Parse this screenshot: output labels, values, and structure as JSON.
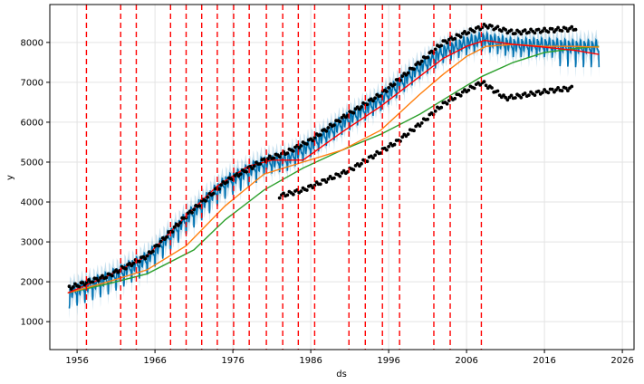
{
  "chart_data": {
    "type": "line",
    "title": "",
    "xlabel": "ds",
    "ylabel": "y",
    "xlim": [
      1952.5,
      2027.5
    ],
    "ylim": [
      300,
      8950
    ],
    "x_ticks": [
      1956,
      1966,
      1976,
      1986,
      1996,
      2006,
      2016,
      2026
    ],
    "y_ticks": [
      1000,
      2000,
      3000,
      4000,
      5000,
      6000,
      7000,
      8000
    ],
    "grid": true,
    "colors": {
      "observed": "#000000",
      "forecast": "#0072B2",
      "uncertainty": "#0072B2",
      "trend": "#ff0000",
      "changepoint": "#ff0000",
      "orange": "#ff7f0e",
      "green": "#2ca02c"
    },
    "observed_segments": [
      {
        "x": [
          1955.0,
          1960.0,
          1965.0,
          1970.0,
          1975.0,
          1980.0,
          1983.0,
          1986.0,
          1990.0,
          1995.0,
          2000.0,
          2003.0,
          2006.0,
          2008.5,
          2012.0,
          2016.0,
          2020.0
        ],
        "y": [
          1850,
          2150,
          2650,
          3650,
          4500,
          5050,
          5250,
          5550,
          6100,
          6700,
          7500,
          8000,
          8250,
          8420,
          8250,
          8300,
          8350
        ]
      },
      {
        "x": [
          1982.0,
          1985.0,
          1988.0,
          1991.0,
          1994.0,
          1997.0,
          2000.0,
          2003.0,
          2006.0,
          2008.0,
          2011.0,
          2014.0,
          2017.0,
          2019.5
        ],
        "y": [
          4150,
          4300,
          4550,
          4800,
          5150,
          5500,
          5950,
          6450,
          6800,
          7000,
          6600,
          6700,
          6800,
          6850
        ]
      }
    ],
    "forecast_center": {
      "x": [
        1955.0,
        1960.0,
        1965.0,
        1970.0,
        1975.0,
        1980.0,
        1983.0,
        1986.0,
        1990.0,
        1995.0,
        2000.0,
        2003.0,
        2006.0,
        2008.0,
        2012.0,
        2016.0,
        2020.0,
        2023.0
      ],
      "y": [
        1750,
        2100,
        2600,
        3600,
        4500,
        5000,
        5100,
        5450,
        6000,
        6600,
        7400,
        7800,
        8000,
        8100,
        7950,
        7950,
        7900,
        7900
      ]
    },
    "trend": {
      "x": [
        1954.8,
        1960.0,
        1965.0,
        1970.0,
        1974.0,
        1978.0,
        1981.0,
        1985.0,
        1990.0,
        1995.0,
        2000.0,
        2003.0,
        2006.0,
        2008.3,
        2012.0,
        2016.0,
        2020.0,
        2023.0
      ],
      "y": [
        1720,
        2150,
        2650,
        3650,
        4400,
        4900,
        5050,
        5050,
        5750,
        6400,
        7150,
        7600,
        7900,
        8050,
        7950,
        7880,
        7800,
        7700
      ]
    },
    "orange": {
      "x": [
        1954.8,
        1960.0,
        1965.0,
        1970.0,
        1975.0,
        1980.0,
        1985.0,
        1990.0,
        1995.0,
        2000.0,
        2003.0,
        2006.0,
        2008.5,
        2012.0,
        2016.0,
        2020.0,
        2023.0
      ],
      "y": [
        1720,
        2000,
        2300,
        2900,
        3900,
        4700,
        5000,
        5300,
        5800,
        6700,
        7200,
        7650,
        7900,
        7950,
        7900,
        7900,
        7880
      ]
    },
    "green": {
      "x": [
        1954.8,
        1960.0,
        1965.0,
        1971.0,
        1975.0,
        1980.0,
        1985.0,
        1990.0,
        1995.0,
        2000.0,
        2005.0,
        2008.0,
        2012.0,
        2016.0,
        2020.0,
        2023.0
      ],
      "y": [
        1720,
        1950,
        2200,
        2800,
        3550,
        4300,
        4850,
        5300,
        5700,
        6200,
        6800,
        7150,
        7500,
        7750,
        7850,
        7900
      ]
    },
    "changepoints": [
      1957.2,
      1961.6,
      1963.6,
      1968.0,
      1970.0,
      1972.0,
      1974.0,
      1976.1,
      1978.1,
      1980.3,
      1982.4,
      1984.4,
      1986.5,
      1990.9,
      1993.0,
      1995.2,
      1997.4,
      2001.8,
      2003.9,
      2007.9
    ]
  }
}
